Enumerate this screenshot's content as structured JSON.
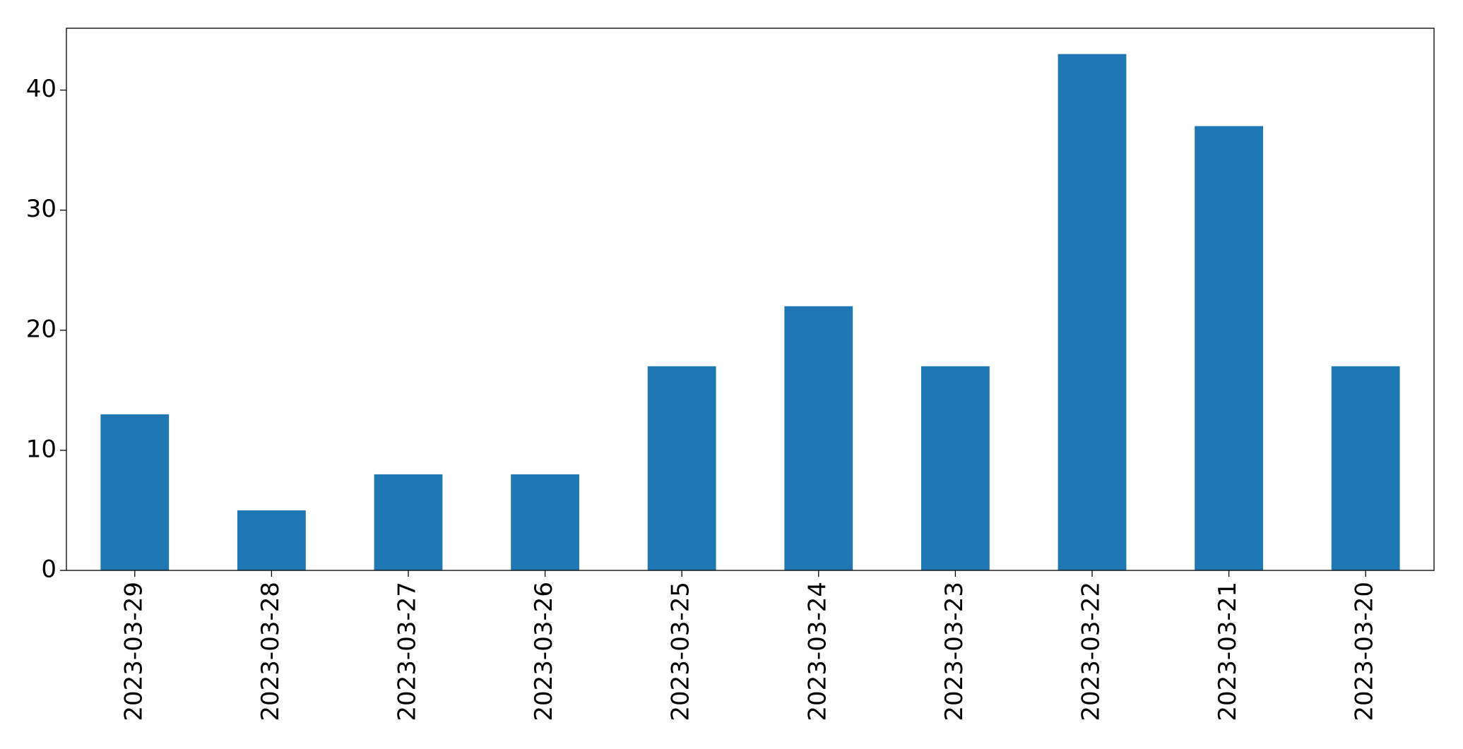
{
  "chart_data": {
    "type": "bar",
    "categories": [
      "2023-03-29",
      "2023-03-28",
      "2023-03-27",
      "2023-03-26",
      "2023-03-25",
      "2023-03-24",
      "2023-03-23",
      "2023-03-22",
      "2023-03-21",
      "2023-03-20"
    ],
    "values": [
      13,
      5,
      8,
      8,
      17,
      22,
      17,
      43,
      37,
      17
    ],
    "color": "#1f77b4",
    "ylim": [
      0,
      45.15
    ],
    "yticks": [
      0,
      10,
      20,
      30,
      40
    ],
    "grid": false
  }
}
